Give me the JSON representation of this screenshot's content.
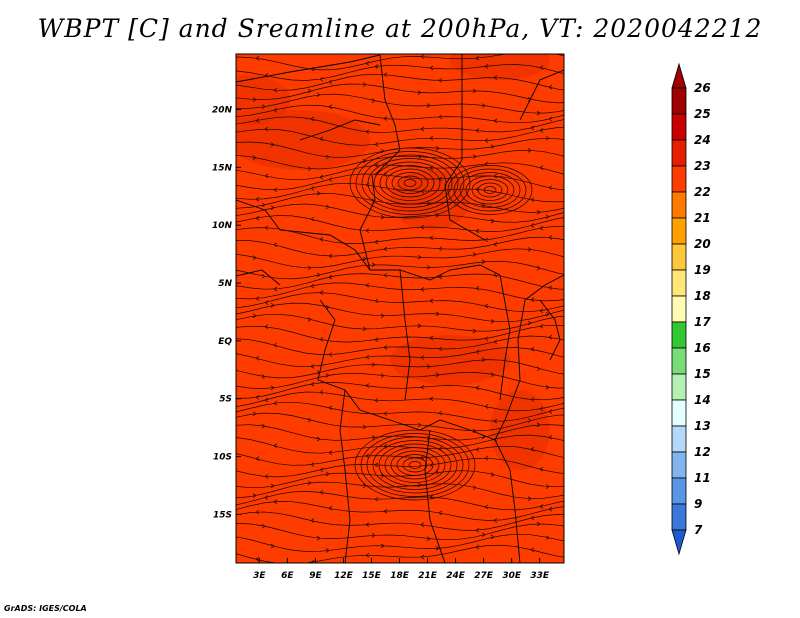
{
  "title": "WBPT [C] and Sreamline at 200hPa, VT: 2020042212",
  "footer": "GrADS: IGES/COLA",
  "map": {
    "lon_labels": [
      "3E",
      "6E",
      "9E",
      "12E",
      "15E",
      "18E",
      "21E",
      "24E",
      "27E",
      "30E",
      "33E"
    ],
    "lon_values": [
      3,
      6,
      9,
      12,
      15,
      18,
      21,
      24,
      27,
      30,
      33
    ],
    "lat_labels": [
      "20N",
      "15N",
      "10N",
      "5N",
      "EQ",
      "5S",
      "10S",
      "15S"
    ],
    "lat_values": [
      20,
      15,
      10,
      5,
      0,
      -5,
      -10,
      -15
    ],
    "lon_range": [
      0.5,
      35.6
    ],
    "lat_range": [
      -19.2,
      24.8
    ],
    "field": "WBPT",
    "field_color": "#ff3c00",
    "field_color_warm": "#e62c00",
    "boundary_color": "#000000"
  },
  "colorbar": {
    "labels": [
      "26",
      "25",
      "24",
      "23",
      "22",
      "21",
      "20",
      "19",
      "18",
      "17",
      "16",
      "15",
      "14",
      "13",
      "12",
      "11",
      "9",
      "7"
    ],
    "colors": [
      "#a00000",
      "#c80000",
      "#e61e00",
      "#ff3c00",
      "#ff7800",
      "#ffa000",
      "#ffc83c",
      "#ffe678",
      "#fffab4",
      "#32c832",
      "#78dc78",
      "#b4f0b4",
      "#e1ffff",
      "#b4d8f8",
      "#82b4f0",
      "#5a96e6",
      "#3c78dc",
      "#1e5ad0"
    ],
    "top_arrow_color": "#a00000",
    "bottom_arrow_color": "#1e5ad0"
  }
}
